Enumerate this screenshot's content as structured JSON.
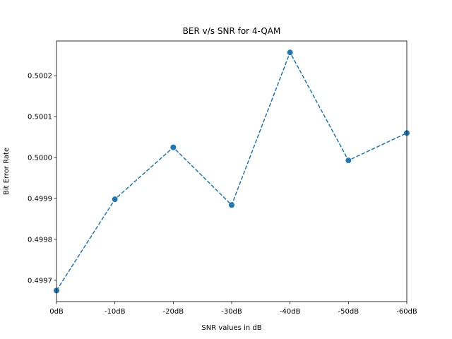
{
  "chart_data": {
    "type": "line",
    "title": "BER v/s SNR for 4-QAM",
    "xlabel": "SNR values in dB",
    "ylabel": "Bit Error Rate",
    "categories": [
      "0dB",
      "-10dB",
      "-20dB",
      "-30dB",
      "-40dB",
      "-50dB",
      "-60dB"
    ],
    "series": [
      {
        "values": [
          0.499675,
          0.499898,
          0.500025,
          0.499884,
          0.500257,
          0.499993,
          0.50006
        ],
        "color": "#1f77b4",
        "line_style": "dashed",
        "marker": "circle"
      }
    ],
    "ylim": [
      0.499648,
      0.500285
    ],
    "yticks": [
      0.4997,
      0.4998,
      0.4999,
      0.5,
      0.5001,
      0.5002
    ],
    "ytick_labels": [
      "0.4997",
      "0.4998",
      "0.4999",
      "0.5000",
      "0.5001",
      "0.5002"
    ],
    "grid": false,
    "legend": "none"
  }
}
